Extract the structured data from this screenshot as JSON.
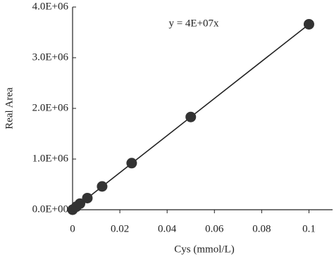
{
  "chart_data": {
    "type": "scatter",
    "x_label": "Cys (mmol/L)",
    "y_label": "Real Area",
    "annotation": "y = 4E+07x",
    "x": [
      0,
      0.0015625,
      0.003125,
      0.00625,
      0.0125,
      0.025,
      0.05,
      0.1
    ],
    "series": [
      {
        "name": "Cys",
        "color": "#333333",
        "values": [
          0,
          60000,
          120000,
          230000,
          460000,
          920000,
          1830000,
          3660000
        ]
      }
    ],
    "trendline": {
      "x": [
        0,
        0.1
      ],
      "y": [
        0,
        3660000
      ],
      "color": "#222222"
    },
    "xlim": [
      0,
      0.11
    ],
    "xticks": [
      0,
      0.02,
      0.04,
      0.06,
      0.08,
      0.1
    ],
    "ylim": [
      0,
      4000000
    ],
    "yticks": [
      {
        "value": 0,
        "label": "0.0E+00"
      },
      {
        "value": 1000000,
        "label": "1.0E+06"
      },
      {
        "value": 2000000,
        "label": "2.0E+06"
      },
      {
        "value": 3000000,
        "label": "3.0E+06"
      },
      {
        "value": 4000000,
        "label": "4.0E+06"
      }
    ],
    "grid": false
  }
}
